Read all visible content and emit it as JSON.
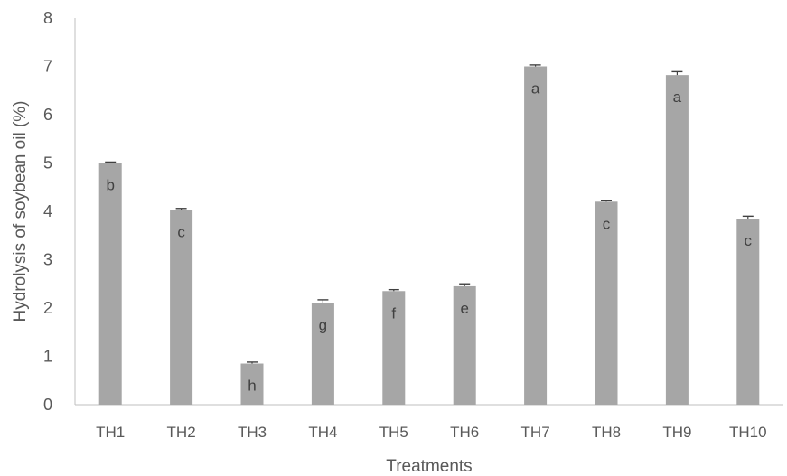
{
  "chart_data": {
    "type": "bar",
    "categories": [
      "TH1",
      "TH2",
      "TH3",
      "TH4",
      "TH5",
      "TH6",
      "TH7",
      "TH8",
      "TH9",
      "TH10"
    ],
    "values": [
      5.0,
      4.03,
      0.85,
      2.1,
      2.35,
      2.45,
      7.0,
      4.2,
      6.82,
      3.85
    ],
    "error": [
      0.02,
      0.03,
      0.03,
      0.07,
      0.03,
      0.05,
      0.03,
      0.03,
      0.07,
      0.05
    ],
    "significance_letters": [
      "b",
      "c",
      "h",
      "g",
      "f",
      "e",
      "a",
      "c",
      "a",
      "c"
    ],
    "xlabel": "Treatments",
    "ylabel": "Hydrolysis of soybean oil (%)",
    "ylim": [
      0,
      8
    ],
    "yticks": [
      0,
      1,
      2,
      3,
      4,
      5,
      6,
      7,
      8
    ],
    "grid": false,
    "bar_color": "#a6a6a6",
    "axis_color": "#bfbfbf",
    "text_color": "#595959"
  }
}
